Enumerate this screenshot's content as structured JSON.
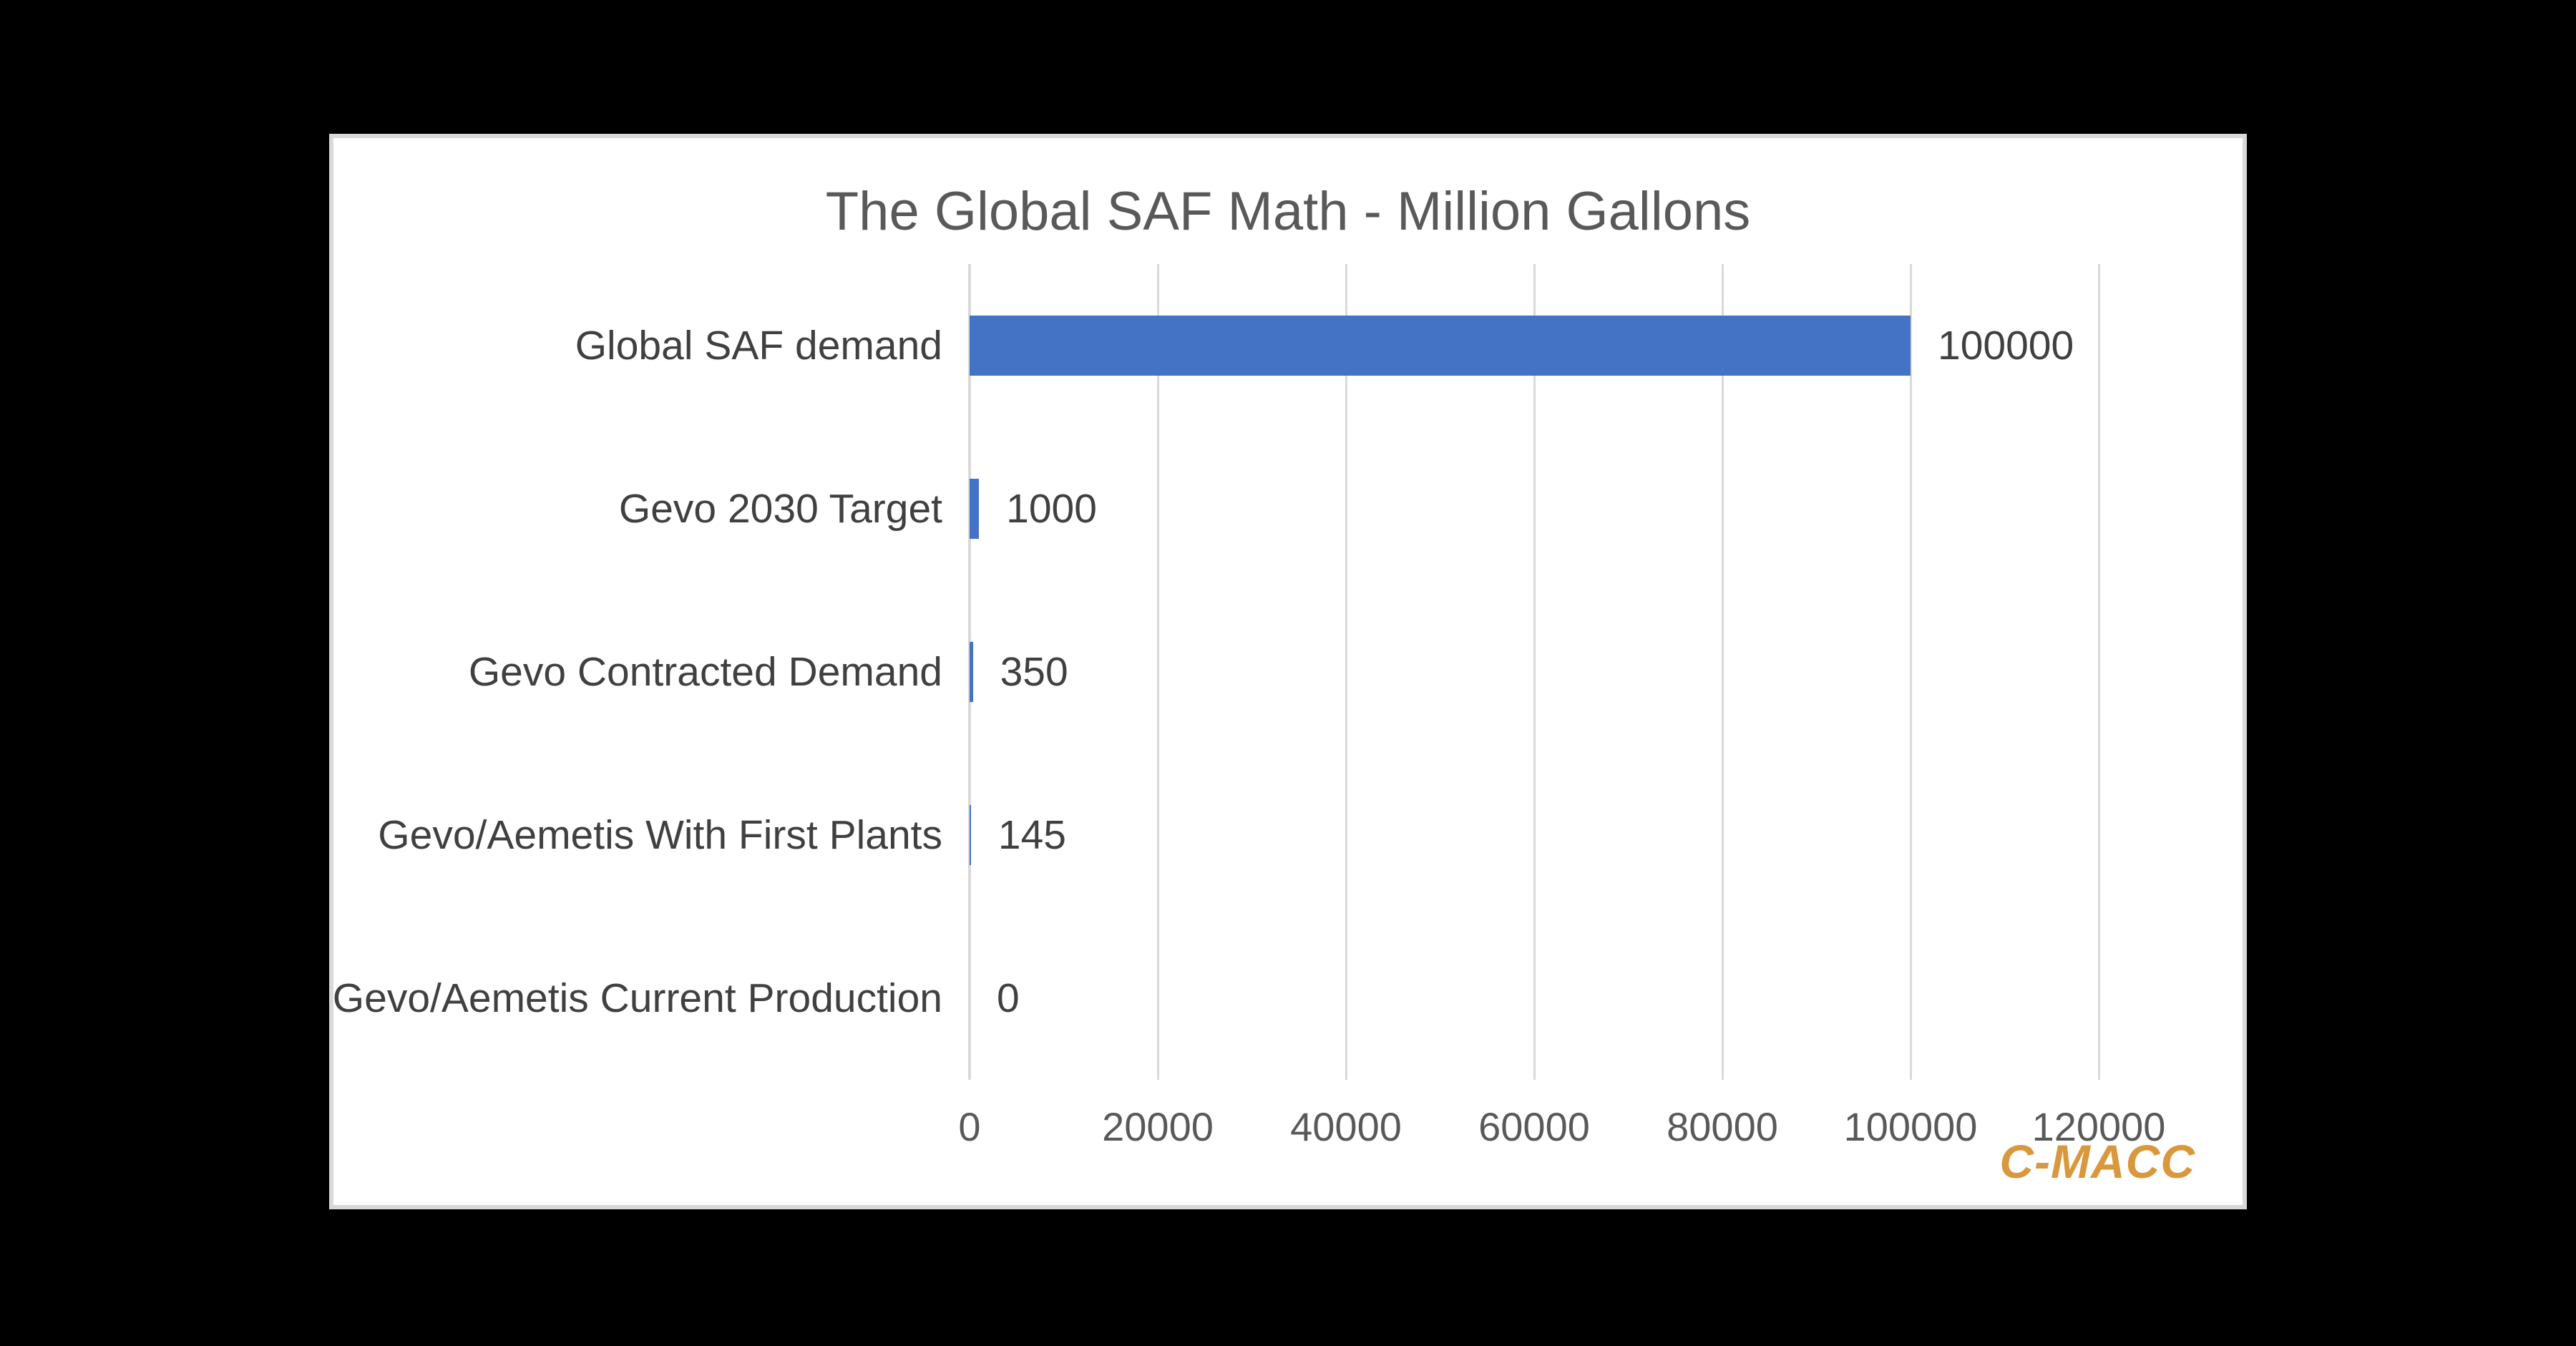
{
  "page": {
    "background_color": "#000000",
    "card_background_color": "#FFFFFF",
    "card_border_color": "#D9D9D9"
  },
  "chart": {
    "title": "The Global SAF Math - Million Gallons",
    "logo_text": "C-MACC",
    "title_color": "#595959",
    "tick_color": "#595959",
    "label_color": "#404040",
    "logo_color": "#D9983C",
    "gridline_color": "#D9D9D9",
    "bar_color": "#4472C4"
  },
  "chart_data": {
    "type": "bar",
    "orientation": "horizontal",
    "title": "The Global SAF Math - Million Gallons",
    "xlabel": "",
    "ylabel": "",
    "categories": [
      "Global SAF demand",
      "Gevo 2030 Target",
      "Gevo Contracted Demand",
      "Gevo/Aemetis With First Plants",
      "Gevo/Aemetis Current Production"
    ],
    "values": [
      100000,
      1000,
      350,
      145,
      0
    ],
    "data_labels": [
      "100000",
      "1000",
      "350",
      "145",
      "0"
    ],
    "x_ticks": [
      0,
      20000,
      40000,
      60000,
      80000,
      100000,
      120000
    ],
    "x_tick_labels": [
      "0",
      "20000",
      "40000",
      "60000",
      "80000",
      "100000",
      "120000"
    ],
    "xlim": [
      0,
      120000
    ],
    "grid": "vertical-major",
    "legend": "none",
    "bar_color": "#4472C4",
    "annotations": [
      "C-MACC"
    ]
  }
}
